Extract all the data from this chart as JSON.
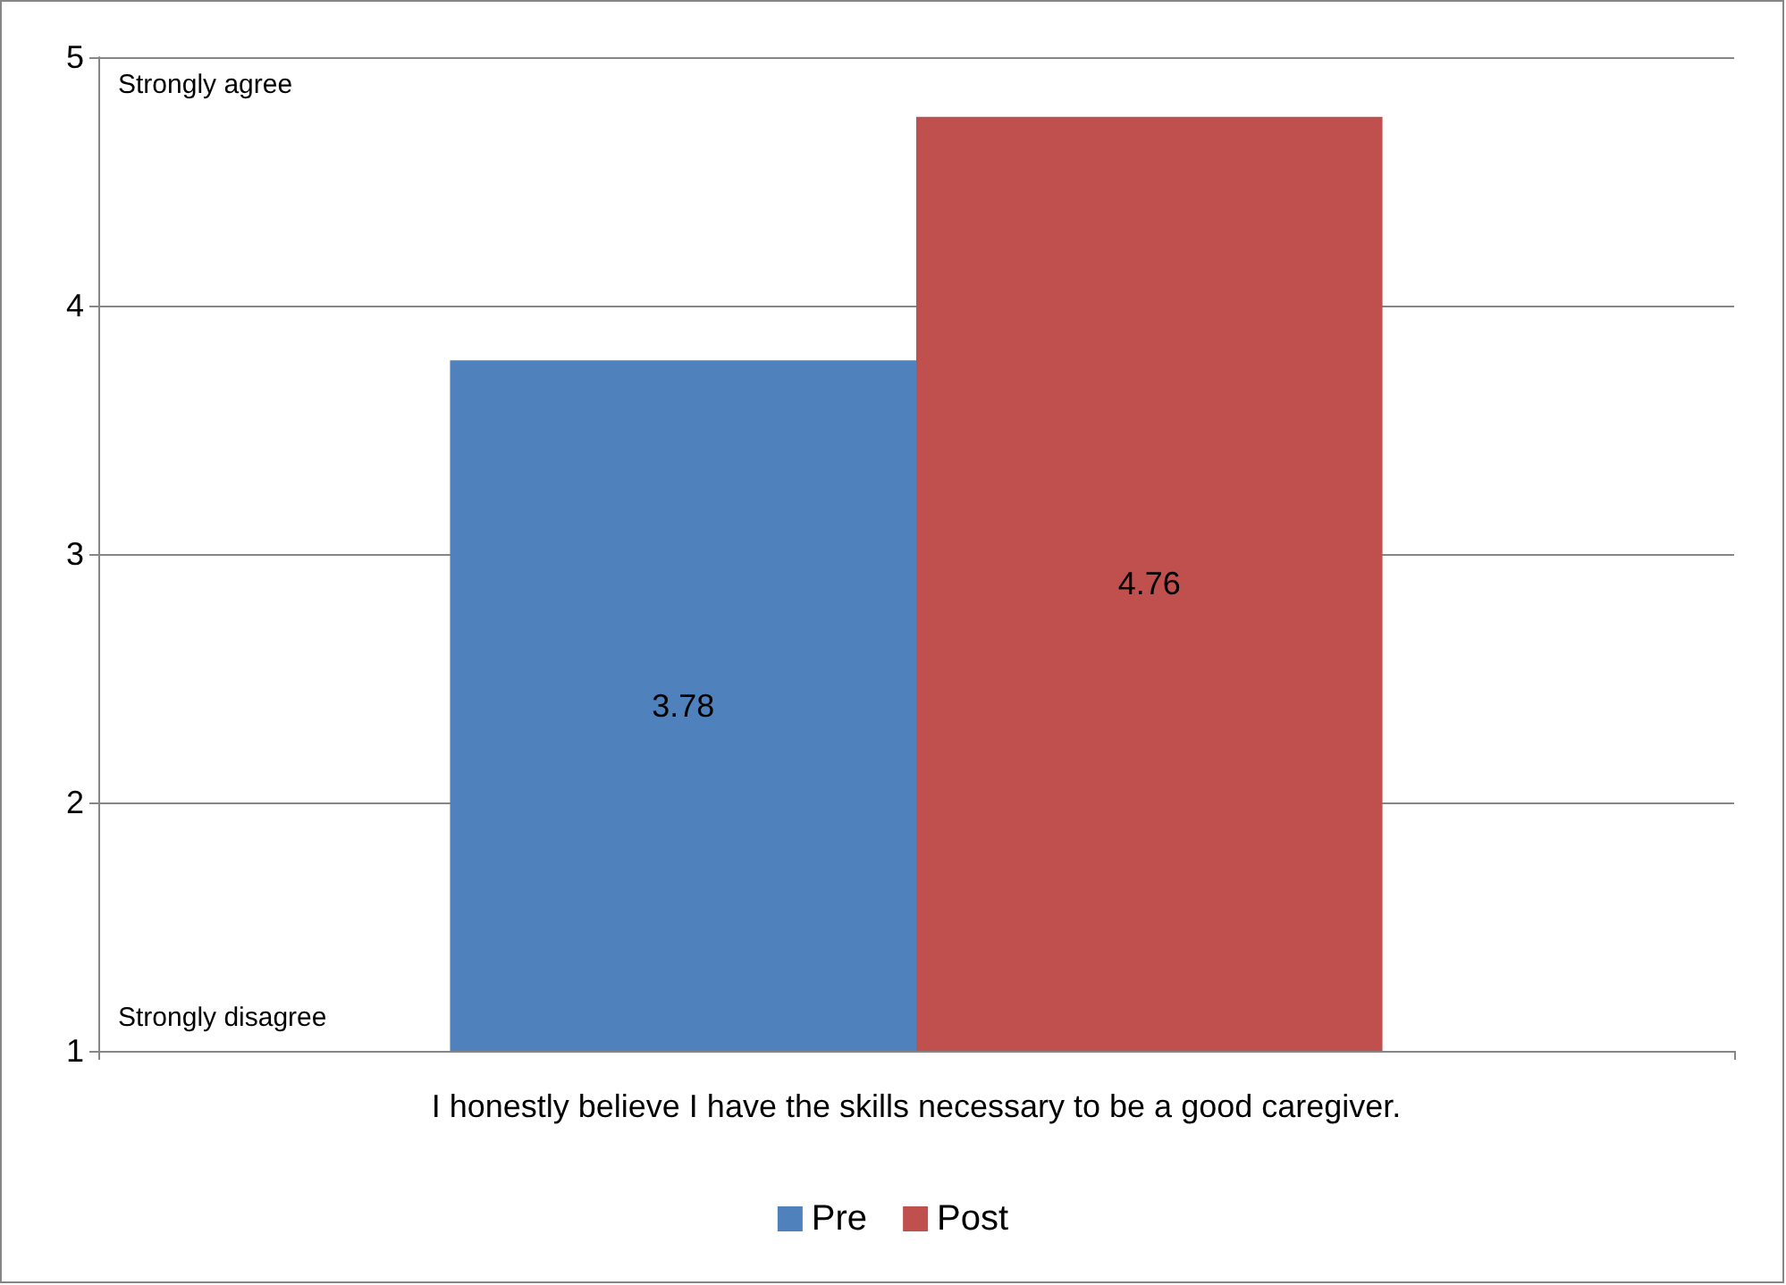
{
  "chart_data": {
    "type": "bar",
    "categories": [
      "I honestly believe I have the skills necessary to be a good caregiver."
    ],
    "series": [
      {
        "name": "Pre",
        "color": "#4f81bd",
        "values": [
          3.78
        ]
      },
      {
        "name": "Post",
        "color": "#c0504d",
        "values": [
          4.76
        ]
      }
    ],
    "ylim": [
      1,
      5
    ],
    "yticks": [
      1,
      2,
      3,
      4,
      5
    ],
    "grid": "y",
    "legend": "bottom",
    "data_labels": true,
    "annotations": [
      "Strongly agree",
      "Strongly disagree"
    ]
  }
}
